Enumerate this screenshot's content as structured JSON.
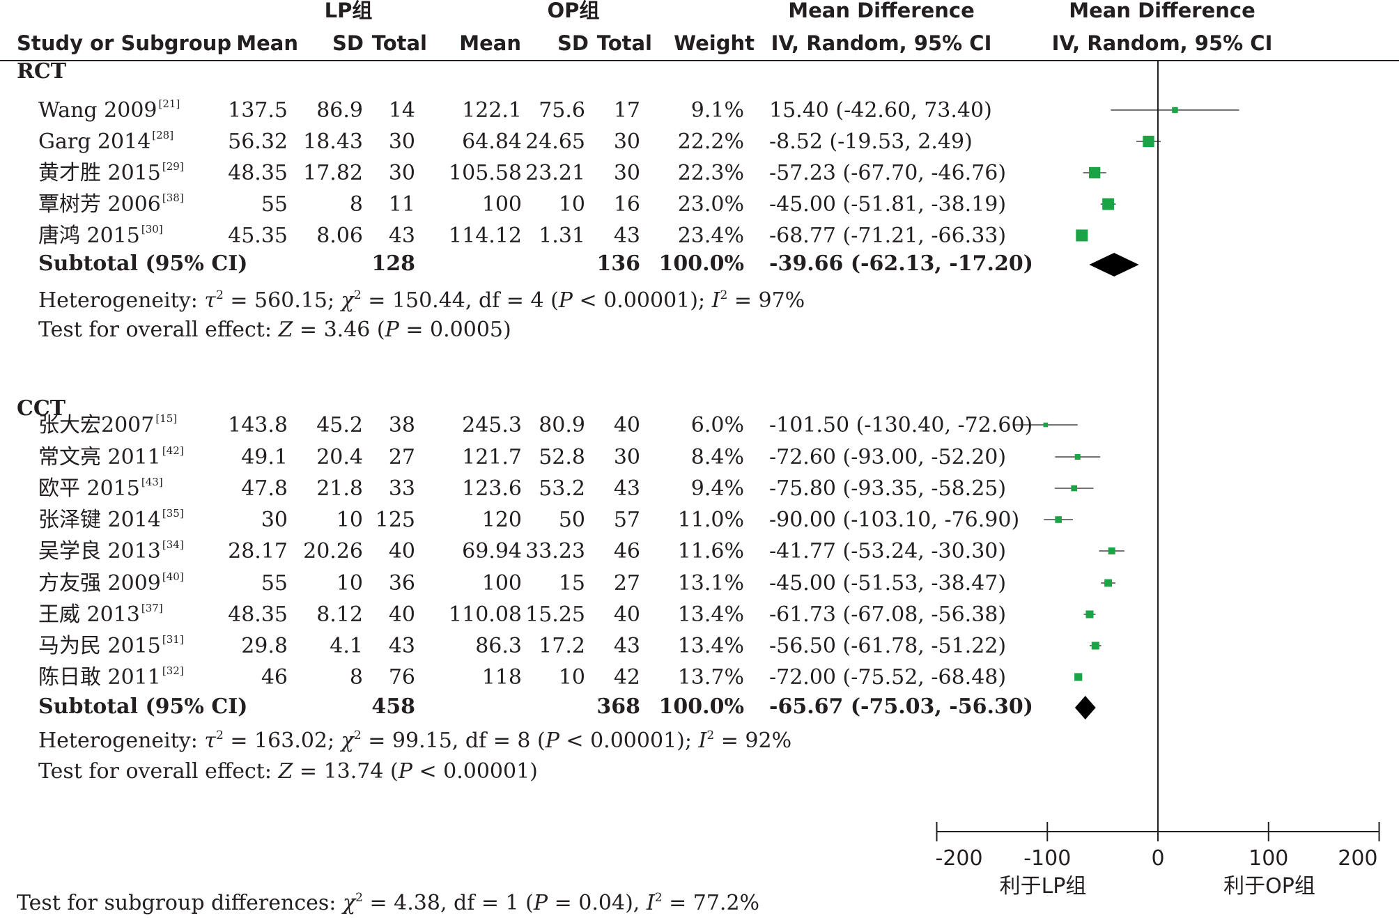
{
  "headers": {
    "group1": "LP组",
    "group2": "OP组",
    "md_left_1": "Mean Difference",
    "md_left_2": "IV, Random, 95% CI",
    "md_right_1": "Mean Difference",
    "md_right_2": "IV, Random, 95% CI",
    "study": "Study or Subgroup",
    "mean1": "Mean",
    "sd1": "SD",
    "total1": "Total",
    "mean2": "Mean",
    "sd2": "SD",
    "total2": "Total",
    "weight": "Weight"
  },
  "chart_data": {
    "type": "forest",
    "xlim": [
      -200,
      200
    ],
    "x_ticks": [
      "-200",
      "-100",
      "0",
      "100",
      "200"
    ],
    "x_tick_values": [
      -200,
      -100,
      0,
      100,
      200
    ],
    "favours_left": "利于LP组",
    "favours_right": "利于OP组",
    "marker_color": "#1ba446",
    "diamond_color": "#000000",
    "subgroups": [
      {
        "name": "RCT",
        "studies": [
          {
            "name": "Wang 2009",
            "ref": "[21]",
            "mean1": "137.5",
            "sd1": "86.9",
            "n1": "14",
            "mean2": "122.1",
            "sd2": "75.6",
            "n2": "17",
            "weight": "9.1%",
            "ci": "15.40 (-42.60, 73.40)",
            "md": 15.4,
            "lo": -42.6,
            "hi": 73.4
          },
          {
            "name": "Garg 2014",
            "ref": "[28]",
            "mean1": "56.32",
            "sd1": "18.43",
            "n1": "30",
            "mean2": "64.84",
            "sd2": "24.65",
            "n2": "30",
            "weight": "22.2%",
            "ci": "-8.52 (-19.53, 2.49)",
            "md": -8.52,
            "lo": -19.53,
            "hi": 2.49
          },
          {
            "name": "黄才胜 2015",
            "ref": "[29]",
            "mean1": "48.35",
            "sd1": "17.82",
            "n1": "30",
            "mean2": "105.58",
            "sd2": "23.21",
            "n2": "30",
            "weight": "22.3%",
            "ci": "-57.23 (-67.70, -46.76)",
            "md": -57.23,
            "lo": -67.7,
            "hi": -46.76
          },
          {
            "name": "覃树芳 2006",
            "ref": "[38]",
            "mean1": "55",
            "sd1": "8",
            "n1": "11",
            "mean2": "100",
            "sd2": "10",
            "n2": "16",
            "weight": "23.0%",
            "ci": "-45.00 (-51.81, -38.19)",
            "md": -45.0,
            "lo": -51.81,
            "hi": -38.19
          },
          {
            "name": "唐鸿 2015",
            "ref": "[30]",
            "mean1": "45.35",
            "sd1": "8.06",
            "n1": "43",
            "mean2": "114.12",
            "sd2": "1.31",
            "n2": "43",
            "weight": "23.4%",
            "ci": "-68.77 (-71.21, -66.33)",
            "md": -68.77,
            "lo": -71.21,
            "hi": -66.33
          }
        ],
        "subtotal": {
          "label": "Subtotal (95% CI)",
          "n1": "128",
          "n2": "136",
          "weight": "100.0%",
          "ci": "-39.66 (-62.13, -17.20)",
          "md": -39.66,
          "lo": -62.13,
          "hi": -17.2
        },
        "heterogeneity": {
          "prefix": "Heterogeneity: ",
          "tau": "τ",
          "tau_val": " = 560.15; ",
          "chi": "χ",
          "chi_val": " = 150.44, df = 4 (",
          "p": "P",
          "p_val": " < 0.00001); ",
          "i": "I",
          "i_val": " = 97%"
        },
        "overall": {
          "prefix": "Test for overall effect: ",
          "z": "Z",
          "z_val": " = 3.46 (",
          "p": "P",
          "p_val": " = 0.0005)"
        }
      },
      {
        "name": "CCT",
        "studies": [
          {
            "name": "张大宏2007",
            "ref": "[15]",
            "mean1": "143.8",
            "sd1": "45.2",
            "n1": "38",
            "mean2": "245.3",
            "sd2": "80.9",
            "n2": "40",
            "weight": "6.0%",
            "ci": "-101.50 (-130.40, -72.60)",
            "md": -101.5,
            "lo": -130.4,
            "hi": -72.6
          },
          {
            "name": "常文亮 2011",
            "ref": "[42]",
            "mean1": "49.1",
            "sd1": "20.4",
            "n1": "27",
            "mean2": "121.7",
            "sd2": "52.8",
            "n2": "30",
            "weight": "8.4%",
            "ci": "-72.60 (-93.00, -52.20)",
            "md": -72.6,
            "lo": -93.0,
            "hi": -52.2
          },
          {
            "name": "欧平 2015",
            "ref": "[43]",
            "mean1": "47.8",
            "sd1": "21.8",
            "n1": "33",
            "mean2": "123.6",
            "sd2": "53.2",
            "n2": "43",
            "weight": "9.4%",
            "ci": "-75.80 (-93.35, -58.25)",
            "md": -75.8,
            "lo": -93.35,
            "hi": -58.25
          },
          {
            "name": "张泽键 2014",
            "ref": "[35]",
            "mean1": "30",
            "sd1": "10",
            "n1": "125",
            "mean2": "120",
            "sd2": "50",
            "n2": "57",
            "weight": "11.0%",
            "ci": "-90.00 (-103.10, -76.90)",
            "md": -90.0,
            "lo": -103.1,
            "hi": -76.9
          },
          {
            "name": "吴学良 2013",
            "ref": "[34]",
            "mean1": "28.17",
            "sd1": "20.26",
            "n1": "40",
            "mean2": "69.94",
            "sd2": "33.23",
            "n2": "46",
            "weight": "11.6%",
            "ci": "-41.77 (-53.24, -30.30)",
            "md": -41.77,
            "lo": -53.24,
            "hi": -30.3
          },
          {
            "name": "方友强 2009",
            "ref": "[40]",
            "mean1": "55",
            "sd1": "10",
            "n1": "36",
            "mean2": "100",
            "sd2": "15",
            "n2": "27",
            "weight": "13.1%",
            "ci": "-45.00 (-51.53, -38.47)",
            "md": -45.0,
            "lo": -51.53,
            "hi": -38.47
          },
          {
            "name": "王威 2013",
            "ref": "[37]",
            "mean1": "48.35",
            "sd1": "8.12",
            "n1": "40",
            "mean2": "110.08",
            "sd2": "15.25",
            "n2": "40",
            "weight": "13.4%",
            "ci": "-61.73 (-67.08, -56.38)",
            "md": -61.73,
            "lo": -67.08,
            "hi": -56.38
          },
          {
            "name": "马为民 2015",
            "ref": "[31]",
            "mean1": "29.8",
            "sd1": "4.1",
            "n1": "43",
            "mean2": "86.3",
            "sd2": "17.2",
            "n2": "43",
            "weight": "13.4%",
            "ci": "-56.50 (-61.78, -51.22)",
            "md": -56.5,
            "lo": -61.78,
            "hi": -51.22
          },
          {
            "name": "陈日敢 2011",
            "ref": "[32]",
            "mean1": "46",
            "sd1": "8",
            "n1": "76",
            "mean2": "118",
            "sd2": "10",
            "n2": "42",
            "weight": "13.7%",
            "ci": "-72.00 (-75.52, -68.48)",
            "md": -72.0,
            "lo": -75.52,
            "hi": -68.48
          }
        ],
        "subtotal": {
          "label": "Subtotal (95% CI)",
          "n1": "458",
          "n2": "368",
          "weight": "100.0%",
          "ci": "-65.67 (-75.03, -56.30)",
          "md": -65.67,
          "lo": -75.03,
          "hi": -56.3
        },
        "heterogeneity": {
          "prefix": "Heterogeneity: ",
          "tau": "τ",
          "tau_val": " = 163.02; ",
          "chi": "χ",
          "chi_val": " = 99.15, df = 8 (",
          "p": "P",
          "p_val": " < 0.00001); ",
          "i": "I",
          "i_val": " = 92%"
        },
        "overall": {
          "prefix": "Test for overall effect: ",
          "z": "Z",
          "z_val": " = 13.74 (",
          "p": "P",
          "p_val": " < 0.00001)"
        }
      }
    ],
    "subgroup_differences": {
      "prefix": "Test for subgroup differences: ",
      "chi": "χ",
      "chi_val": " = 4.38, df = 1 (",
      "p": "P",
      "p_val": " = 0.04), ",
      "i": "I",
      "i_val": " = 77.2%"
    }
  }
}
